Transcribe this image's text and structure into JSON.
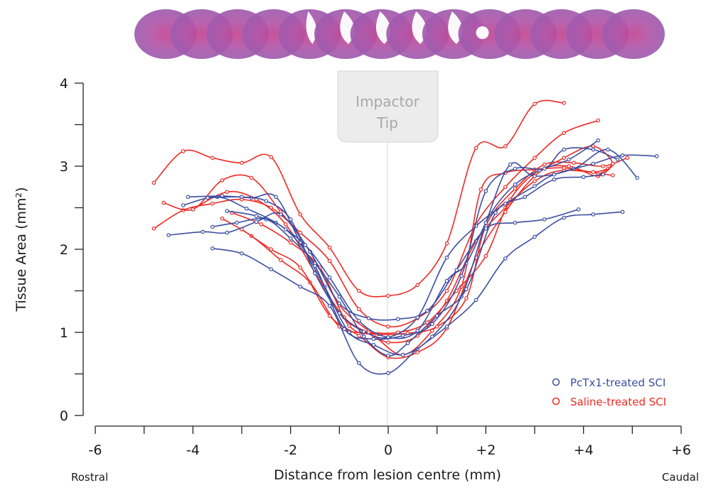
{
  "chart_data": {
    "type": "line",
    "title": "",
    "xlabel": "Distance from lesion centre (mm)",
    "ylabel": "Tissue Area (mm²)",
    "xlim": [
      -6,
      6
    ],
    "ylim": [
      0,
      4
    ],
    "x_ticks": [
      -6,
      -5,
      -4,
      -3,
      -2,
      -1,
      0,
      1,
      2,
      3,
      4,
      5,
      6
    ],
    "x_tick_labels": [
      "-6",
      "-4",
      "-2",
      "0",
      "+2",
      "+4",
      "+6"
    ],
    "x_tick_label_values": [
      -6,
      -4,
      -2,
      0,
      2,
      4,
      6
    ],
    "y_ticks": [
      0,
      0.5,
      1,
      1.5,
      2,
      2.5,
      3,
      3.5,
      4
    ],
    "y_tick_labels": [
      "0",
      "1",
      "2",
      "3",
      "4"
    ],
    "y_tick_label_values": [
      0,
      1,
      2,
      3,
      4
    ],
    "grid": false,
    "x_end_labels": {
      "left": "Rostral",
      "right": "Caudal"
    },
    "annotation": {
      "text_lines": [
        "Impactor",
        "Tip"
      ],
      "x": 0
    },
    "header_image": "row of H&E-stained spinal cord cross-sections (rostral to caudal)",
    "legend_position": "bottom-right",
    "legend": [
      {
        "name": "PcTx1-treated SCI",
        "color": "#3c4ea3"
      },
      {
        "name": "Saline-treated SCI",
        "color": "#ee2a24"
      }
    ],
    "series": [
      {
        "name": "Saline-treated SCI",
        "color": "#ee2a24",
        "points": [
          [
            -4.8,
            2.8
          ],
          [
            -4.2,
            3.18
          ],
          [
            -3.6,
            3.1
          ],
          [
            -3.0,
            3.04
          ],
          [
            -2.4,
            3.11
          ],
          [
            -1.8,
            2.42
          ],
          [
            -1.2,
            2.02
          ],
          [
            -0.6,
            1.5
          ],
          [
            0,
            1.44
          ],
          [
            0.6,
            1.57
          ],
          [
            1.2,
            2.07
          ],
          [
            1.8,
            3.22
          ],
          [
            2.4,
            3.24
          ],
          [
            3.0,
            3.75
          ],
          [
            3.6,
            3.76
          ]
        ]
      },
      {
        "name": "Saline-treated SCI",
        "color": "#ee2a24",
        "points": [
          [
            -4.8,
            2.25
          ],
          [
            -4.2,
            2.47
          ],
          [
            -3.6,
            2.55
          ],
          [
            -3.0,
            2.6
          ],
          [
            -2.4,
            2.5
          ],
          [
            -1.8,
            2.2
          ],
          [
            -1.2,
            1.86
          ],
          [
            -0.6,
            1.28
          ],
          [
            0,
            1.07
          ],
          [
            0.6,
            1.17
          ],
          [
            1.2,
            1.5
          ],
          [
            1.8,
            2.3
          ],
          [
            2.4,
            2.75
          ],
          [
            3.0,
            3.1
          ],
          [
            3.6,
            3.4
          ],
          [
            4.3,
            3.55
          ]
        ]
      },
      {
        "name": "Saline-treated SCI",
        "color": "#ee2a24",
        "points": [
          [
            -4.6,
            2.56
          ],
          [
            -4.0,
            2.48
          ],
          [
            -3.4,
            2.83
          ],
          [
            -2.8,
            2.86
          ],
          [
            -2.2,
            2.45
          ],
          [
            -1.6,
            1.97
          ],
          [
            -1.0,
            1.33
          ],
          [
            -0.4,
            1.02
          ],
          [
            0,
            0.88
          ],
          [
            0.6,
            0.96
          ],
          [
            1.2,
            1.38
          ],
          [
            1.8,
            2.1
          ],
          [
            2.4,
            2.5
          ],
          [
            3.0,
            2.82
          ],
          [
            3.6,
            2.95
          ],
          [
            4.6,
            2.89
          ]
        ]
      },
      {
        "name": "Saline-treated SCI",
        "color": "#ee2a24",
        "points": [
          [
            -4.0,
            2.48
          ],
          [
            -3.3,
            2.69
          ],
          [
            -2.7,
            2.6
          ],
          [
            -2.1,
            2.3
          ],
          [
            -1.5,
            1.72
          ],
          [
            -0.9,
            1.18
          ],
          [
            -0.3,
            0.96
          ],
          [
            0.3,
            0.73
          ],
          [
            0.9,
            1.02
          ],
          [
            1.5,
            1.55
          ],
          [
            1.9,
            2.72
          ],
          [
            2.4,
            2.92
          ],
          [
            3.0,
            2.96
          ],
          [
            3.6,
            2.98
          ],
          [
            4.2,
            2.93
          ],
          [
            4.5,
            2.97
          ]
        ]
      },
      {
        "name": "Saline-treated SCI",
        "color": "#ee2a24",
        "points": [
          [
            -3.2,
            2.44
          ],
          [
            -2.6,
            2.3
          ],
          [
            -2.0,
            2.08
          ],
          [
            -1.4,
            1.78
          ],
          [
            -0.8,
            1.08
          ],
          [
            -0.2,
            0.98
          ],
          [
            0.4,
            0.99
          ],
          [
            1.0,
            1.07
          ],
          [
            1.6,
            1.41
          ],
          [
            2.0,
            2.28
          ],
          [
            2.6,
            2.73
          ],
          [
            3.2,
            3.02
          ],
          [
            3.8,
            3.04
          ],
          [
            4.4,
            3.0
          ],
          [
            4.9,
            3.1
          ]
        ]
      },
      {
        "name": "Saline-treated SCI",
        "color": "#ee2a24",
        "points": [
          [
            -3.4,
            2.37
          ],
          [
            -2.8,
            2.16
          ],
          [
            -2.2,
            1.87
          ],
          [
            -1.6,
            1.6
          ],
          [
            -1.0,
            1.07
          ],
          [
            -0.4,
            1.0
          ],
          [
            0.2,
            1.0
          ],
          [
            0.8,
            1.12
          ],
          [
            1.4,
            1.5
          ],
          [
            2.0,
            1.92
          ],
          [
            2.5,
            2.6
          ],
          [
            3.1,
            2.95
          ],
          [
            3.7,
            3.0
          ],
          [
            4.3,
            2.88
          ],
          [
            4.6,
            3.03
          ]
        ]
      },
      {
        "name": "Saline-treated SCI",
        "color": "#ee2a24",
        "points": [
          [
            -3.0,
            2.24
          ],
          [
            -2.4,
            2.0
          ],
          [
            -1.8,
            1.78
          ],
          [
            -1.2,
            1.2
          ],
          [
            -0.6,
            0.96
          ],
          [
            0,
            0.7
          ],
          [
            0.6,
            0.76
          ],
          [
            1.2,
            1.05
          ],
          [
            1.8,
            1.9
          ],
          [
            2.4,
            2.45
          ],
          [
            3.0,
            2.88
          ],
          [
            3.6,
            3.1
          ],
          [
            4.2,
            3.24
          ],
          [
            4.6,
            3.03
          ],
          [
            4.3,
            2.9
          ]
        ]
      },
      {
        "name": "PcTx1-treated SCI",
        "color": "#3c4ea3",
        "points": [
          [
            -3.6,
            2.01
          ],
          [
            -3.0,
            1.95
          ],
          [
            -2.4,
            1.76
          ],
          [
            -1.8,
            1.55
          ],
          [
            -1.2,
            1.32
          ],
          [
            -0.6,
            0.63
          ],
          [
            0,
            0.51
          ],
          [
            0.6,
            0.8
          ],
          [
            1.2,
            1.07
          ],
          [
            1.8,
            1.39
          ],
          [
            2.4,
            1.89
          ],
          [
            3.0,
            2.15
          ],
          [
            3.6,
            2.38
          ],
          [
            4.2,
            2.42
          ],
          [
            4.8,
            2.45
          ]
        ]
      },
      {
        "name": "PcTx1-treated SCI",
        "color": "#3c4ea3",
        "points": [
          [
            -4.5,
            2.17
          ],
          [
            -3.8,
            2.21
          ],
          [
            -3.3,
            2.2
          ],
          [
            -2.7,
            2.33
          ],
          [
            -2.2,
            2.42
          ],
          [
            -1.6,
            1.97
          ],
          [
            -1.0,
            1.35
          ],
          [
            -0.4,
            1.17
          ],
          [
            0.2,
            1.16
          ],
          [
            0.8,
            1.26
          ],
          [
            1.4,
            1.75
          ],
          [
            2.0,
            2.25
          ],
          [
            2.6,
            2.32
          ],
          [
            3.2,
            2.36
          ],
          [
            3.9,
            2.48
          ]
        ]
      },
      {
        "name": "PcTx1-treated SCI",
        "color": "#3c4ea3",
        "points": [
          [
            -4.2,
            2.53
          ],
          [
            -3.5,
            2.63
          ],
          [
            -2.9,
            2.49
          ],
          [
            -2.3,
            2.32
          ],
          [
            -1.7,
            2.05
          ],
          [
            -1.2,
            1.66
          ],
          [
            -0.6,
            1.14
          ],
          [
            0,
            0.94
          ],
          [
            0.6,
            1.02
          ],
          [
            1.2,
            1.62
          ],
          [
            1.6,
            1.83
          ],
          [
            2.1,
            2.43
          ],
          [
            2.6,
            2.78
          ],
          [
            3.1,
            2.95
          ],
          [
            3.7,
            3.08
          ],
          [
            4.3,
            3.31
          ]
        ]
      },
      {
        "name": "PcTx1-treated SCI",
        "color": "#3c4ea3",
        "points": [
          [
            -4.1,
            2.63
          ],
          [
            -3.4,
            2.64
          ],
          [
            -2.8,
            2.62
          ],
          [
            -2.3,
            2.63
          ],
          [
            -1.8,
            2.08
          ],
          [
            -1.3,
            1.55
          ],
          [
            -0.8,
            1.0
          ],
          [
            -0.3,
            0.85
          ],
          [
            0.3,
            0.73
          ],
          [
            0.9,
            0.95
          ],
          [
            1.5,
            1.43
          ],
          [
            2.0,
            2.32
          ],
          [
            2.5,
            3.02
          ],
          [
            3.0,
            2.88
          ],
          [
            3.8,
            2.97
          ],
          [
            4.5,
            3.2
          ],
          [
            5.1,
            2.86
          ]
        ]
      },
      {
        "name": "PcTx1-treated SCI",
        "color": "#3c4ea3",
        "points": [
          [
            -3.6,
            2.27
          ],
          [
            -3.1,
            2.32
          ],
          [
            -2.5,
            2.36
          ],
          [
            -2.0,
            2.13
          ],
          [
            -1.5,
            1.83
          ],
          [
            -1.0,
            1.43
          ],
          [
            -0.5,
            0.95
          ],
          [
            0,
            0.72
          ],
          [
            0.4,
            0.87
          ],
          [
            1.0,
            1.2
          ],
          [
            1.6,
            1.52
          ],
          [
            2.2,
            2.44
          ],
          [
            2.8,
            2.63
          ],
          [
            3.4,
            2.84
          ],
          [
            4.0,
            2.87
          ],
          [
            4.4,
            2.9
          ]
        ]
      },
      {
        "name": "PcTx1-treated SCI",
        "color": "#3c4ea3",
        "points": [
          [
            -3.7,
            2.62
          ],
          [
            -3.0,
            2.63
          ],
          [
            -2.5,
            2.58
          ],
          [
            -2.0,
            2.36
          ],
          [
            -1.5,
            1.71
          ],
          [
            -1.0,
            1.23
          ],
          [
            -0.5,
            1.01
          ],
          [
            0,
            0.94
          ],
          [
            0.6,
            1.18
          ],
          [
            1.2,
            1.9
          ],
          [
            1.8,
            2.28
          ],
          [
            2.4,
            2.55
          ],
          [
            3.0,
            2.76
          ],
          [
            3.4,
            2.9
          ],
          [
            4.2,
            3.03
          ],
          [
            4.8,
            3.13
          ],
          [
            5.5,
            3.12
          ]
        ]
      },
      {
        "name": "PcTx1-treated SCI",
        "color": "#3c4ea3",
        "points": [
          [
            -3.3,
            2.46
          ],
          [
            -2.7,
            2.4
          ],
          [
            -2.1,
            2.24
          ],
          [
            -1.5,
            1.8
          ],
          [
            -0.9,
            1.04
          ],
          [
            -0.3,
            0.92
          ],
          [
            0.3,
            0.96
          ],
          [
            0.9,
            1.1
          ],
          [
            1.5,
            1.68
          ],
          [
            2.0,
            2.7
          ],
          [
            2.6,
            2.97
          ],
          [
            3.2,
            2.97
          ],
          [
            3.6,
            3.2
          ],
          [
            4.2,
            3.2
          ],
          [
            4.7,
            3.08
          ]
        ]
      }
    ]
  }
}
